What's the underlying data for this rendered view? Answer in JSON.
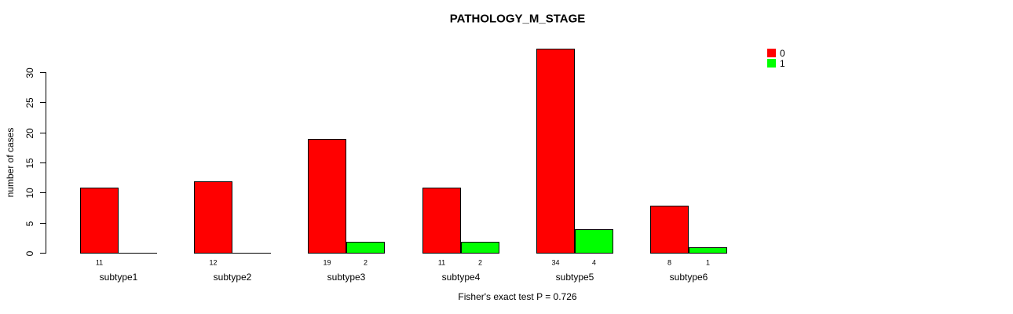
{
  "chart_data": {
    "type": "bar",
    "title": "PATHOLOGY_M_STAGE",
    "xlabel": "",
    "ylabel": "number of cases",
    "categories": [
      "subtype1",
      "subtype2",
      "subtype3",
      "subtype4",
      "subtype5",
      "subtype6"
    ],
    "series": [
      {
        "name": "0",
        "color": "#ff0000",
        "values": [
          11,
          12,
          19,
          11,
          34,
          8
        ]
      },
      {
        "name": "1",
        "color": "#00ff00",
        "values": [
          0,
          0,
          2,
          2,
          4,
          1
        ]
      }
    ],
    "bar_value_labels": [
      [
        "11",
        "12",
        "19",
        "11",
        "34",
        "8"
      ],
      [
        "",
        "",
        "2",
        "2",
        "4",
        "1"
      ]
    ],
    "yticks": [
      0,
      5,
      10,
      15,
      20,
      25,
      30
    ],
    "ylim": [
      0,
      34
    ],
    "grid": false,
    "legend_position": "top-right",
    "legend_entries": [
      "0",
      "1"
    ],
    "annotation": "Fisher's exact test P = 0.726"
  }
}
